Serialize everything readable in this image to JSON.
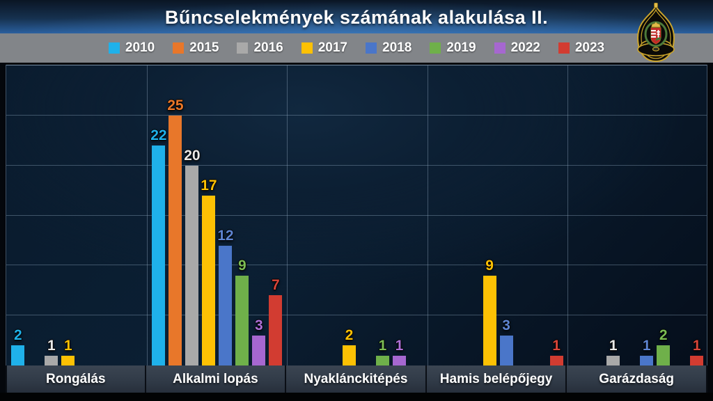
{
  "title": "Bűncselekmények számának alakulása  II.",
  "logo": {
    "name": "hungarian-police-badge"
  },
  "colors": {
    "header_blue": "#2a5f9e",
    "legend_band_gray": "#828589",
    "plot_background": "#0b1f33",
    "category_strip": "#313b48"
  },
  "chart_data": {
    "type": "bar",
    "title": "Bűncselekmények számának alakulása II.",
    "categories": [
      "Rongálás",
      "Alkalmi lopás",
      "Nyaklánckitépés",
      "Hamis belépőjegy",
      "Garázdaság"
    ],
    "series": [
      {
        "name": "2010",
        "color": "#1fb1ea",
        "label_color": "#1fb1ea",
        "values": [
          2,
          22,
          0,
          0,
          0
        ]
      },
      {
        "name": "2015",
        "color": "#e8772a",
        "label_color": "#e8772a",
        "values": [
          0,
          25,
          0,
          0,
          0
        ]
      },
      {
        "name": "2016",
        "color": "#a9a9a9",
        "label_color": "#e9e9e9",
        "values": [
          1,
          20,
          0,
          0,
          1
        ]
      },
      {
        "name": "2017",
        "color": "#fdc104",
        "label_color": "#fdc104",
        "values": [
          1,
          17,
          2,
          9,
          0
        ]
      },
      {
        "name": "2018",
        "color": "#4a76c9",
        "label_color": "#5e85d2",
        "values": [
          0,
          12,
          0,
          3,
          1
        ]
      },
      {
        "name": "2019",
        "color": "#6fb04a",
        "label_color": "#7cbd55",
        "values": [
          0,
          9,
          1,
          0,
          2
        ]
      },
      {
        "name": "2022",
        "color": "#a667d0",
        "label_color": "#ae70d8",
        "values": [
          0,
          3,
          1,
          0,
          0
        ]
      },
      {
        "name": "2023",
        "color": "#d23c31",
        "label_color": "#d8453a",
        "values": [
          0,
          7,
          0,
          1,
          1
        ]
      }
    ],
    "ylim": [
      0,
      30
    ],
    "gridline_step": 5,
    "grid": true,
    "legend_position": "top",
    "xlabel": "",
    "ylabel": ""
  }
}
